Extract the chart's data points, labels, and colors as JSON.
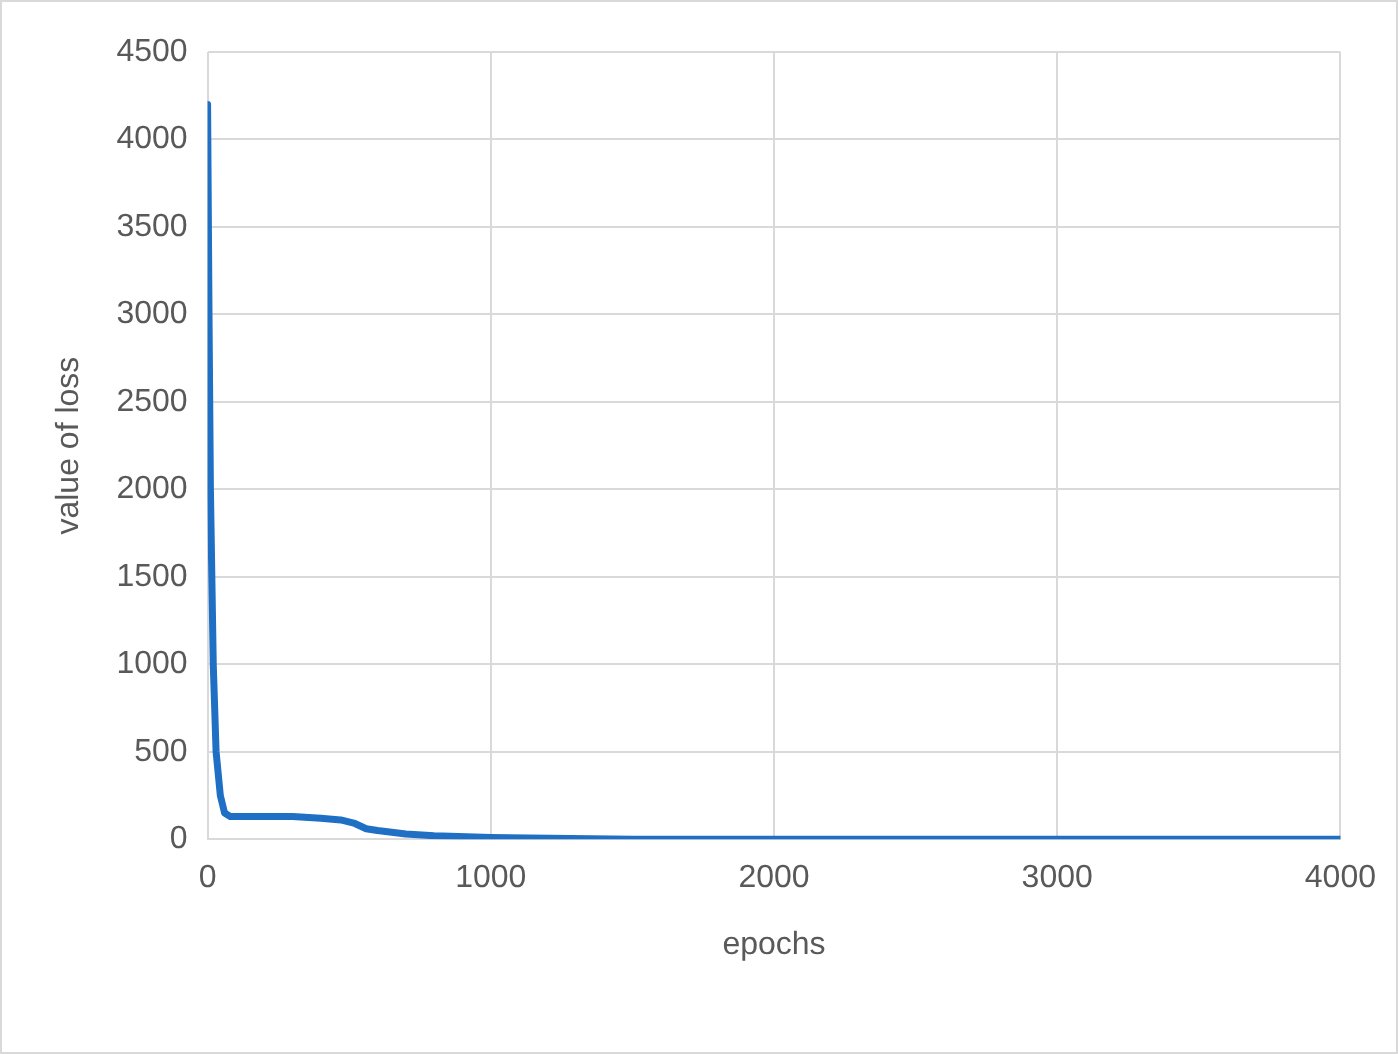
{
  "chart_data": {
    "type": "line",
    "xlabel": "epochs",
    "ylabel": "value of loss",
    "x": [
      0,
      5,
      10,
      20,
      30,
      45,
      60,
      80,
      200,
      300,
      400,
      470,
      520,
      560,
      600,
      700,
      800,
      1000,
      1500,
      2000,
      3000,
      4000
    ],
    "series": [
      {
        "color": "#1f6fc5",
        "values": [
          4200,
          3000,
          2000,
          1000,
          500,
          250,
          150,
          130,
          130,
          130,
          120,
          110,
          90,
          60,
          50,
          30,
          20,
          10,
          0,
          0,
          0,
          0
        ]
      }
    ],
    "xlim": [
      0,
      4000
    ],
    "xticks": [
      0,
      1000,
      2000,
      3000,
      4000
    ],
    "ylim": [
      0,
      4500
    ],
    "yticks": [
      0,
      500,
      1000,
      1500,
      2000,
      2500,
      3000,
      3500,
      4000,
      4500
    ],
    "grid": true,
    "legend": false,
    "marker": "none",
    "line_style": "solid"
  }
}
